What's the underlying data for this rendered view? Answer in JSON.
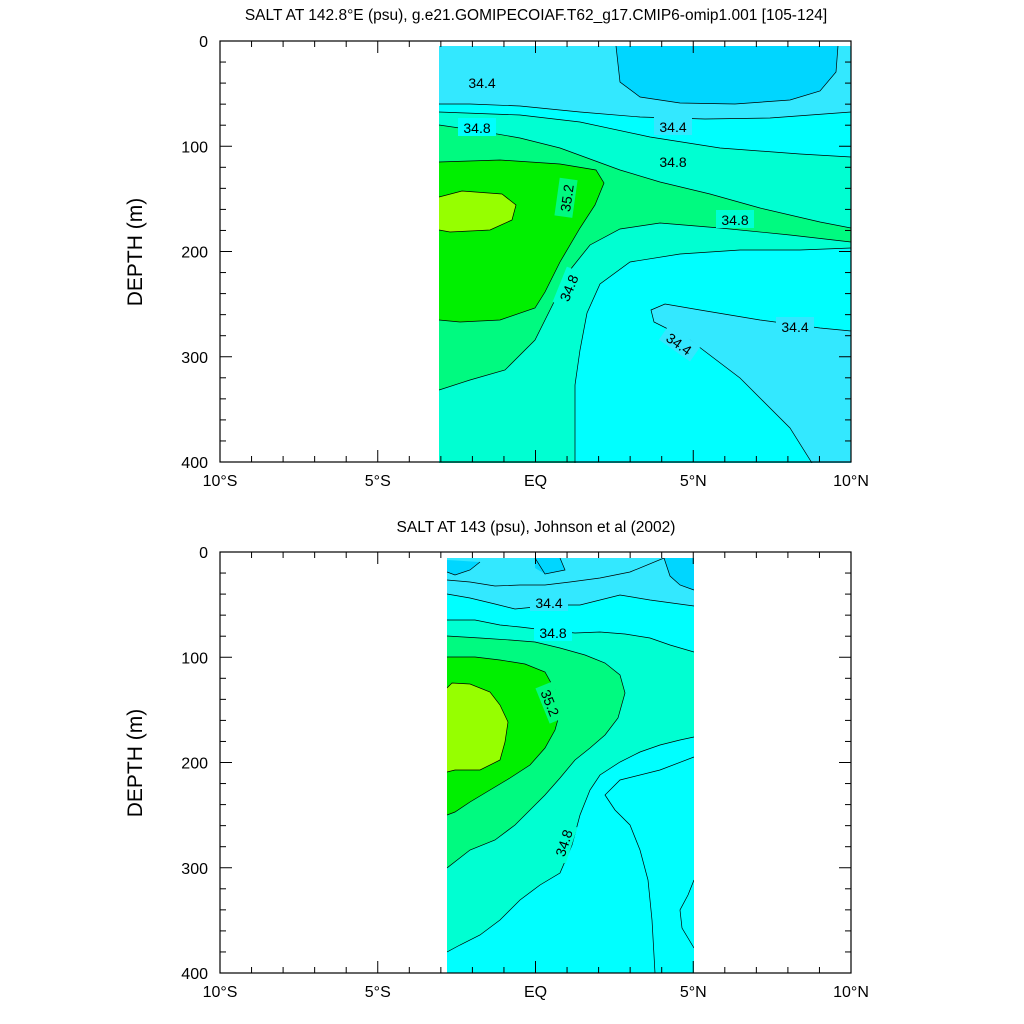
{
  "colors": {
    "level_34_2": "#00d6ff",
    "level_34_4": "#33e8ff",
    "level_34_6": "#00ffff",
    "level_34_8": "#00ffd2",
    "level_35_0": "#00fa80",
    "level_35_2": "#00f000",
    "level_35_4": "#96ff00",
    "contour_line": "#000000",
    "missing": "#ffffff"
  },
  "chart_data": [
    {
      "type": "heatmap",
      "title": "SALT AT 142.8°E (psu), g.e21.GOMIPECOIAF.T62_g17.CMIP6-omip1.001 [105-124]",
      "ylabel": "DEPTH (m)",
      "xlabel": "",
      "x_ticks": [
        "10°S",
        "5°S",
        "EQ",
        "5°N",
        "10°N"
      ],
      "x_tick_values": [
        -10,
        -5,
        0,
        5,
        10
      ],
      "y_ticks": [
        "0",
        "100",
        "200",
        "300",
        "400"
      ],
      "y_tick_values": [
        0,
        100,
        200,
        300,
        400
      ],
      "xlim": [
        -10,
        10
      ],
      "ylim": [
        400,
        0
      ],
      "data_extent_lat": [
        -3.1,
        10
      ],
      "contour_labels": [
        "34.4",
        "34.8",
        "34.4",
        "34.8",
        "35.2",
        "34.8",
        "34.8",
        "34.4",
        "34.4"
      ],
      "grid": false
    },
    {
      "type": "heatmap",
      "title": "SALT AT 143 (psu), Johnson et al (2002)",
      "ylabel": "DEPTH (m)",
      "xlabel": "",
      "x_ticks": [
        "10°S",
        "5°S",
        "EQ",
        "5°N",
        "10°N"
      ],
      "x_tick_values": [
        -10,
        -5,
        0,
        5,
        10
      ],
      "y_ticks": [
        "0",
        "100",
        "200",
        "300",
        "400"
      ],
      "y_tick_values": [
        0,
        100,
        200,
        300,
        400
      ],
      "xlim": [
        -10,
        10
      ],
      "ylim": [
        400,
        0
      ],
      "data_extent_lat": [
        -2.9,
        5
      ],
      "contour_labels": [
        "34.4",
        "34.8",
        "35.2",
        "34.8"
      ],
      "grid": false
    }
  ]
}
